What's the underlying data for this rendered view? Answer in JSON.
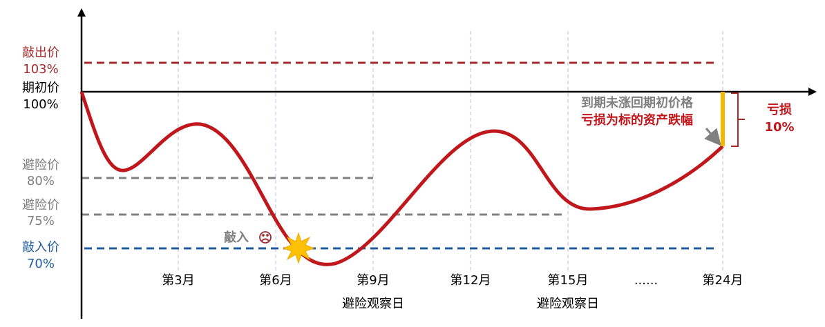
{
  "levels": [
    {
      "name": "敲出价",
      "label": "103%"
    },
    {
      "name": "期初价",
      "label": "100%"
    },
    {
      "name": "避险价",
      "label": "80%"
    },
    {
      "name": "避险价",
      "label": "75%"
    },
    {
      "name": "敲入价",
      "label": "70%"
    }
  ],
  "months": [
    "第3月",
    "第6月",
    "第9月",
    "第12月",
    "第15月",
    "......",
    "第24月"
  ],
  "observation_days": [
    "避险观察日",
    "避险观察日"
  ],
  "knock_in": "敲入",
  "annotation": {
    "line1": "到期未涨回期初价格",
    "line2": "亏损为标的资产跌幅"
  },
  "loss": {
    "title": "亏损",
    "value": "10%"
  }
}
